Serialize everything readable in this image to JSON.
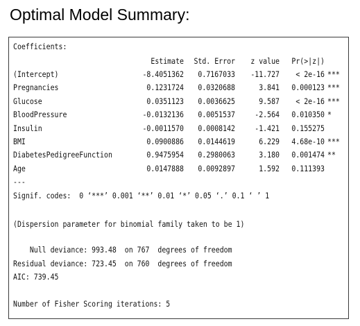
{
  "title": "Optimal Model Summary:",
  "coefficients": {
    "heading": "Coefficients:",
    "columns": [
      "Estimate",
      "Std. Error",
      "z value",
      "Pr(>|z|)",
      ""
    ],
    "rows": [
      {
        "name": "(Intercept)",
        "estimate": "-8.4051362",
        "std_error": "0.7167033",
        "z_value": "-11.727",
        "p_value": "< 2e-16",
        "signif": "***"
      },
      {
        "name": "Pregnancies",
        "estimate": "0.1231724",
        "std_error": "0.0320688",
        "z_value": "3.841",
        "p_value": "0.000123",
        "signif": "***"
      },
      {
        "name": "Glucose",
        "estimate": "0.0351123",
        "std_error": "0.0036625",
        "z_value": "9.587",
        "p_value": "< 2e-16",
        "signif": "***"
      },
      {
        "name": "BloodPressure",
        "estimate": "-0.0132136",
        "std_error": "0.0051537",
        "z_value": "-2.564",
        "p_value": "0.010350",
        "signif": "*"
      },
      {
        "name": "Insulin",
        "estimate": "-0.0011570",
        "std_error": "0.0008142",
        "z_value": "-1.421",
        "p_value": "0.155275",
        "signif": ""
      },
      {
        "name": "BMI",
        "estimate": "0.0900886",
        "std_error": "0.0144619",
        "z_value": "6.229",
        "p_value": "4.68e-10",
        "signif": "***"
      },
      {
        "name": "DiabetesPedigreeFunction",
        "estimate": "0.9475954",
        "std_error": "0.2980063",
        "z_value": "3.180",
        "p_value": "0.001474",
        "signif": "**"
      },
      {
        "name": "Age",
        "estimate": "0.0147888",
        "std_error": "0.0092897",
        "z_value": "1.592",
        "p_value": "0.111393",
        "signif": ""
      }
    ],
    "separator": "---",
    "signif_codes": "Signif. codes:  0 ‘***’ 0.001 ‘**’ 0.01 ‘*’ 0.05 ‘.’ 0.1 ‘ ’ 1"
  },
  "dispersion_note": "(Dispersion parameter for binomial family taken to be 1)",
  "deviance": {
    "null_line": "    Null deviance: 993.48  on 767  degrees of freedom",
    "residual_line": "Residual deviance: 723.45  on 760  degrees of freedom",
    "aic_line": "AIC: 739.45"
  },
  "fisher_line": "Number of Fisher Scoring iterations: 5"
}
